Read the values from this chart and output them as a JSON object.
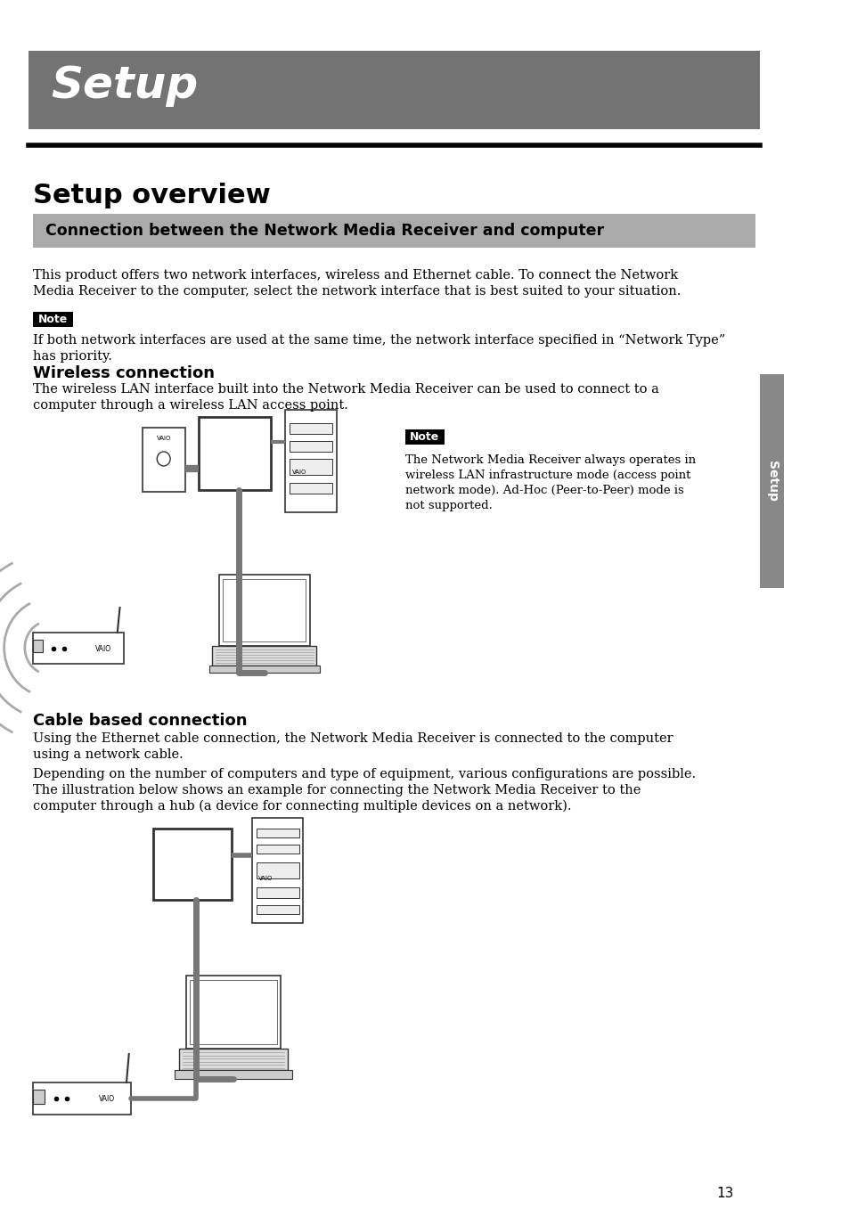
{
  "page_bg": "#ffffff",
  "header_bg": "#737373",
  "header_text": "Setup",
  "header_text_color": "#ffffff",
  "section_title": "Setup overview",
  "connection_box_bg": "#aaaaaa",
  "connection_box_text": "Connection between the Network Media Receiver and computer",
  "body_text_color": "#000000",
  "note_bg": "#000000",
  "note_text_color": "#ffffff",
  "sidebar_bg": "#888888",
  "sidebar_text": "Setup",
  "page_number": "13",
  "para1_line1": "This product offers two network interfaces, wireless and Ethernet cable. To connect the Network",
  "para1_line2": "Media Receiver to the computer, select the network interface that is best suited to your situation.",
  "note1_text_line1": "If both network interfaces are used at the same time, the network interface specified in “Network Type”",
  "note1_text_line2": "has priority.",
  "wireless_title": "Wireless connection",
  "wireless_para_line1": "The wireless LAN interface built into the Network Media Receiver can be used to connect to a",
  "wireless_para_line2": "computer through a wireless LAN access point.",
  "note2_line1": "The Network Media Receiver always operates in",
  "note2_line2": "wireless LAN infrastructure mode (access point",
  "note2_line3": "network mode). Ad-Hoc (Peer-to-Peer) mode is",
  "note2_line4": "not supported.",
  "cable_title": "Cable based connection",
  "cable_para1_line1": "Using the Ethernet cable connection, the Network Media Receiver is connected to the computer",
  "cable_para1_line2": "using a network cable.",
  "cable_para2": "Depending on the number of computers and type of equipment, various configurations are possible.",
  "cable_para3_line1": "The illustration below shows an example for connecting the Network Media Receiver to the",
  "cable_para3_line2": "computer through a hub (a device for connecting multiple devices on a network).",
  "cable_color": "#777777",
  "wire_color": "#aaaaaa",
  "device_edge": "#333333"
}
